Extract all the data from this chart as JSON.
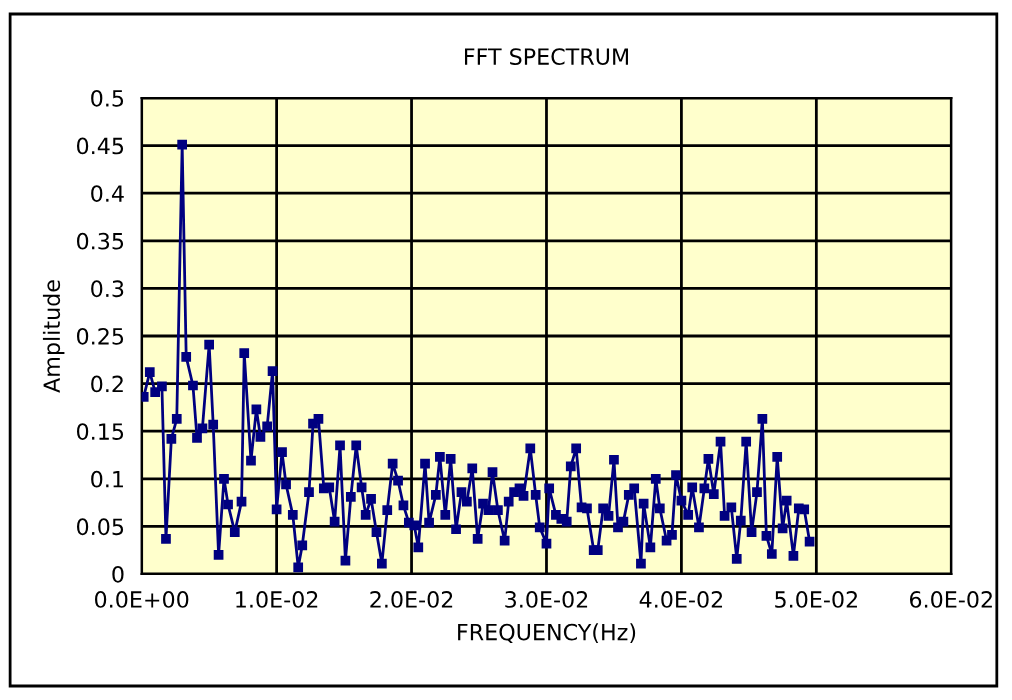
{
  "chart_data": {
    "type": "line",
    "title": "FFT SPECTRUM",
    "xlabel": "FREQUENCY(Hz)",
    "ylabel": "Amplitude",
    "x": [
      0.00015,
      0.0006,
      0.001,
      0.0015,
      0.0018,
      0.0022,
      0.0026,
      0.003,
      0.0033,
      0.0038,
      0.0041,
      0.0045,
      0.005,
      0.0053,
      0.0057,
      0.0061,
      0.0064,
      0.0069,
      0.0074,
      0.0076,
      0.0081,
      0.0085,
      0.0088,
      0.0093,
      0.0097,
      0.01,
      0.0104,
      0.0107,
      0.0112,
      0.0116,
      0.0119,
      0.0124,
      0.0127,
      0.0131,
      0.0135,
      0.0139,
      0.0143,
      0.0147,
      0.0151,
      0.0155,
      0.0159,
      0.0163,
      0.0166,
      0.017,
      0.0174,
      0.0178,
      0.0182,
      0.0186,
      0.019,
      0.0194,
      0.0198,
      0.0202,
      0.0205,
      0.021,
      0.0213,
      0.0218,
      0.0221,
      0.0225,
      0.0229,
      0.0233,
      0.0237,
      0.0241,
      0.0245,
      0.0249,
      0.0253,
      0.0257,
      0.026,
      0.0264,
      0.0269,
      0.0272,
      0.0276,
      0.028,
      0.0283,
      0.0288,
      0.0292,
      0.0295,
      0.03,
      0.0302,
      0.0307,
      0.0311,
      0.0315,
      0.0318,
      0.0322,
      0.0326,
      0.033,
      0.0335,
      0.0338,
      0.0342,
      0.0346,
      0.035,
      0.0353,
      0.0357,
      0.0361,
      0.0365,
      0.037,
      0.0372,
      0.0377,
      0.0381,
      0.0384,
      0.0389,
      0.0393,
      0.0396,
      0.04,
      0.0405,
      0.0408,
      0.0413,
      0.0417,
      0.042,
      0.0424,
      0.0429,
      0.0432,
      0.0437,
      0.0441,
      0.0444,
      0.0448,
      0.0452,
      0.0456,
      0.046,
      0.0463,
      0.0467,
      0.0471,
      0.0475,
      0.0478,
      0.0483,
      0.0487,
      0.0491,
      0.0495
    ],
    "series": [
      {
        "color": "#000080",
        "values": [
          0.186,
          0.212,
          0.191,
          0.197,
          0.037,
          0.142,
          0.163,
          0.451,
          0.228,
          0.198,
          0.143,
          0.153,
          0.241,
          0.157,
          0.02,
          0.1,
          0.073,
          0.044,
          0.076,
          0.232,
          0.119,
          0.173,
          0.144,
          0.155,
          0.213,
          0.068,
          0.128,
          0.094,
          0.062,
          0.007,
          0.03,
          0.086,
          0.158,
          0.163,
          0.09,
          0.091,
          0.055,
          0.135,
          0.014,
          0.081,
          0.135,
          0.091,
          0.062,
          0.079,
          0.044,
          0.011,
          0.067,
          0.116,
          0.098,
          0.072,
          0.054,
          0.051,
          0.028,
          0.116,
          0.054,
          0.083,
          0.123,
          0.062,
          0.121,
          0.047,
          0.086,
          0.076,
          0.111,
          0.037,
          0.074,
          0.067,
          0.107,
          0.067,
          0.035,
          0.076,
          0.086,
          0.09,
          0.082,
          0.132,
          0.083,
          0.049,
          0.032,
          0.09,
          0.062,
          0.058,
          0.055,
          0.113,
          0.132,
          0.07,
          0.069,
          0.025,
          0.025,
          0.069,
          0.061,
          0.12,
          0.049,
          0.055,
          0.083,
          0.09,
          0.011,
          0.074,
          0.028,
          0.1,
          0.069,
          0.035,
          0.041,
          0.104,
          0.077,
          0.062,
          0.091,
          0.049,
          0.09,
          0.121,
          0.084,
          0.139,
          0.061,
          0.07,
          0.016,
          0.056,
          0.139,
          0.044,
          0.086,
          0.163,
          0.04,
          0.021,
          0.123,
          0.048,
          0.077,
          0.019,
          0.069,
          0.068,
          0.034
        ]
      }
    ],
    "xlim": [
      0,
      0.06
    ],
    "xticks": [
      {
        "value": 0,
        "label": "0.0E+00"
      },
      {
        "value": 0.01,
        "label": "1.0E-02"
      },
      {
        "value": 0.02,
        "label": "2.0E-02"
      },
      {
        "value": 0.03,
        "label": "3.0E-02"
      },
      {
        "value": 0.04,
        "label": "4.0E-02"
      },
      {
        "value": 0.05,
        "label": "5.0E-02"
      },
      {
        "value": 0.06,
        "label": "6.0E-02"
      }
    ],
    "ylim": [
      0,
      0.5
    ],
    "yticks": [
      0,
      0.05,
      0.1,
      0.15,
      0.2,
      0.25,
      0.3,
      0.35,
      0.4,
      0.45,
      0.5
    ],
    "grid": true,
    "marker": "square",
    "line_style": "solid"
  }
}
